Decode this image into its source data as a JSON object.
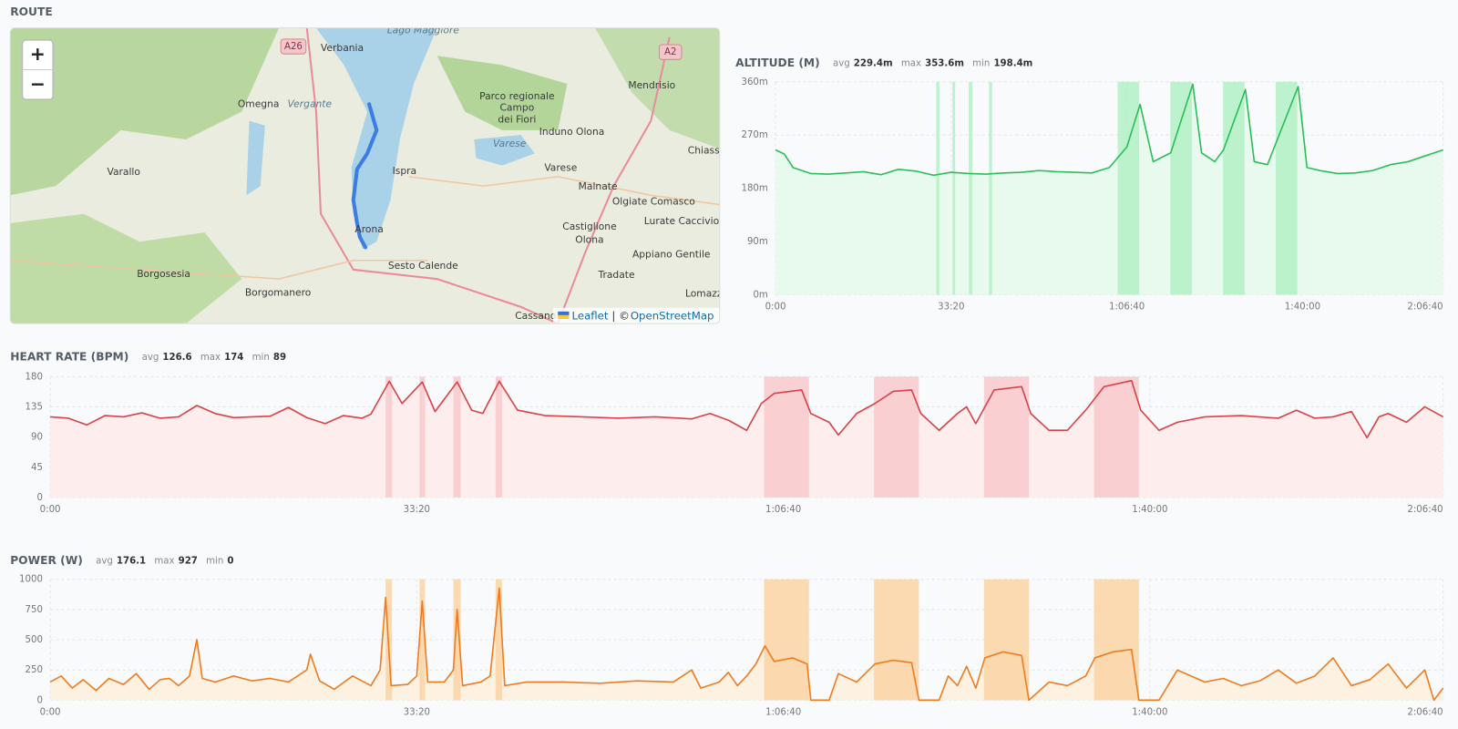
{
  "route": {
    "title": "ROUTE",
    "zoom_in": "+",
    "zoom_out": "−",
    "attribution": [
      "Leaflet",
      "| ©",
      "OpenStreetMap"
    ],
    "road_labels": [
      "A26",
      "A2"
    ],
    "places": [
      "Lago Maggiore",
      "Verbania",
      "Omegna",
      "Vergante",
      "Parco regionale",
      "Campo",
      "dei Fiori",
      "Induno Olona",
      "Mendrisio",
      "Chiasso",
      "Varallo",
      "Ispra",
      "Varese",
      "Varese",
      "Malnate",
      "Olgiate Comasco",
      "Lurate Caccivio",
      "Castiglione",
      "Olona",
      "Appiano Gentile",
      "Arona",
      "Sesto Calende",
      "Tradate",
      "Lomazzo",
      "Borgosesia",
      "Borgomanero",
      "Cassano"
    ]
  },
  "intervals": [
    [
      1830,
      1865
    ],
    [
      2015,
      2045
    ],
    [
      2200,
      2240
    ],
    [
      2430,
      2465
    ],
    [
      3895,
      4140
    ],
    [
      4495,
      4740
    ],
    [
      5095,
      5340
    ],
    [
      5695,
      5940
    ]
  ],
  "chart_data": [
    {
      "type": "line",
      "title": "ALTITUDE (M)",
      "stats": [
        {
          "label": "avg",
          "value": "229.4m"
        },
        {
          "label": "max",
          "value": "353.6m"
        },
        {
          "label": "min",
          "value": "198.4m"
        }
      ],
      "color": "#2bbf5a",
      "fill_color": "#e8faee",
      "highlight_color": "#b3f0c6",
      "grid": true,
      "xlim": [
        0,
        7600
      ],
      "xticks": [
        {
          "value": 0,
          "label": "0:00"
        },
        {
          "value": 2000,
          "label": "33:20"
        },
        {
          "value": 4000,
          "label": "1:06:40"
        },
        {
          "value": 6000,
          "label": "1:40:00"
        },
        {
          "value": 7600,
          "label": "2:06:40"
        }
      ],
      "ylim": [
        0,
        360
      ],
      "yticks": [
        {
          "value": 0,
          "label": "0m"
        },
        {
          "value": 90,
          "label": "90m"
        },
        {
          "value": 180,
          "label": "180m"
        },
        {
          "value": 270,
          "label": "270m"
        },
        {
          "value": 360,
          "label": "360m"
        }
      ],
      "x": [
        0,
        100,
        200,
        400,
        600,
        800,
        1000,
        1200,
        1400,
        1600,
        1800,
        2000,
        2200,
        2400,
        2600,
        2800,
        3000,
        3200,
        3400,
        3600,
        3800,
        4000,
        4150,
        4300,
        4500,
        4750,
        4850,
        5000,
        5100,
        5350,
        5450,
        5600,
        5950,
        6050,
        6200,
        6400,
        6600,
        6800,
        7000,
        7200,
        7400,
        7600
      ],
      "values": [
        245,
        238,
        215,
        205,
        204,
        206,
        208,
        203,
        212,
        209,
        202,
        207,
        205,
        204,
        206,
        207,
        210,
        208,
        207,
        206,
        215,
        250,
        322,
        225,
        240,
        356,
        240,
        225,
        245,
        347,
        225,
        220,
        352,
        215,
        210,
        205,
        206,
        210,
        220,
        225,
        235,
        245
      ]
    },
    {
      "type": "line",
      "title": "HEART RATE (BPM)",
      "stats": [
        {
          "label": "avg",
          "value": "126.6"
        },
        {
          "label": "max",
          "value": "174"
        },
        {
          "label": "min",
          "value": "89"
        }
      ],
      "color": "#d9434b",
      "fill_color": "#fdeded",
      "highlight_color": "#f9c9cc",
      "grid": true,
      "xlim": [
        0,
        7600
      ],
      "xticks": [
        {
          "value": 0,
          "label": "0:00"
        },
        {
          "value": 2000,
          "label": "33:20"
        },
        {
          "value": 4000,
          "label": "1:06:40"
        },
        {
          "value": 6000,
          "label": "1:40:00"
        },
        {
          "value": 7600,
          "label": "2:06:40"
        }
      ],
      "ylim": [
        0,
        180
      ],
      "yticks": [
        0,
        45,
        90,
        135,
        180
      ],
      "x": [
        0,
        100,
        200,
        300,
        400,
        500,
        600,
        700,
        800,
        900,
        1000,
        1100,
        1200,
        1300,
        1400,
        1500,
        1600,
        1700,
        1750,
        1850,
        1920,
        2030,
        2100,
        2220,
        2300,
        2360,
        2450,
        2550,
        2700,
        2900,
        3100,
        3300,
        3500,
        3600,
        3700,
        3800,
        3880,
        3950,
        4100,
        4150,
        4250,
        4300,
        4400,
        4500,
        4600,
        4700,
        4750,
        4850,
        4950,
        5000,
        5050,
        5150,
        5300,
        5350,
        5450,
        5550,
        5650,
        5750,
        5900,
        5950,
        6050,
        6150,
        6300,
        6500,
        6700,
        6800,
        6900,
        7000,
        7100,
        7185,
        7250,
        7300,
        7400,
        7500,
        7600
      ],
      "values": [
        120,
        118,
        108,
        122,
        120,
        126,
        118,
        120,
        137,
        125,
        119,
        120,
        121,
        134,
        119,
        110,
        122,
        118,
        124,
        173,
        140,
        172,
        128,
        172,
        130,
        125,
        173,
        130,
        122,
        120,
        118,
        120,
        117,
        125,
        115,
        100,
        140,
        155,
        160,
        125,
        112,
        93,
        125,
        140,
        158,
        160,
        125,
        100,
        125,
        135,
        110,
        160,
        165,
        125,
        100,
        100,
        130,
        165,
        174,
        130,
        100,
        112,
        120,
        122,
        118,
        130,
        118,
        120,
        128,
        89,
        120,
        125,
        112,
        135,
        120
      ]
    },
    {
      "type": "line",
      "title": "POWER (W)",
      "stats": [
        {
          "label": "avg",
          "value": "176.1"
        },
        {
          "label": "max",
          "value": "927"
        },
        {
          "label": "min",
          "value": "0"
        }
      ],
      "color": "#ee7d22",
      "fill_color": "#fdf1e2",
      "highlight_color": "#fbd3a5",
      "grid": true,
      "xlim": [
        0,
        7600
      ],
      "xticks": [
        {
          "value": 0,
          "label": "0:00"
        },
        {
          "value": 2000,
          "label": "33:20"
        },
        {
          "value": 4000,
          "label": "1:06:40"
        },
        {
          "value": 6000,
          "label": "1:40:00"
        },
        {
          "value": 7600,
          "label": "2:06:40"
        }
      ],
      "ylim": [
        0,
        1000
      ],
      "yticks": [
        0,
        250,
        500,
        750,
        1000
      ],
      "x": [
        0,
        60,
        120,
        180,
        250,
        320,
        400,
        470,
        540,
        600,
        650,
        700,
        760,
        800,
        830,
        900,
        1000,
        1100,
        1200,
        1300,
        1400,
        1420,
        1470,
        1550,
        1650,
        1750,
        1800,
        1830,
        1860,
        1950,
        2000,
        2030,
        2060,
        2150,
        2200,
        2220,
        2250,
        2350,
        2400,
        2450,
        2480,
        2600,
        2800,
        3000,
        3200,
        3400,
        3500,
        3550,
        3650,
        3700,
        3750,
        3800,
        3850,
        3900,
        3950,
        4050,
        4130,
        4150,
        4250,
        4300,
        4400,
        4500,
        4600,
        4700,
        4740,
        4850,
        4900,
        4950,
        5000,
        5050,
        5100,
        5200,
        5300,
        5340,
        5450,
        5550,
        5650,
        5700,
        5800,
        5900,
        5940,
        6050,
        6150,
        6300,
        6400,
        6500,
        6600,
        6700,
        6800,
        6900,
        7000,
        7100,
        7200,
        7300,
        7400,
        7500,
        7550,
        7600
      ],
      "values": [
        150,
        200,
        100,
        170,
        80,
        180,
        130,
        220,
        90,
        170,
        180,
        120,
        200,
        500,
        180,
        150,
        200,
        160,
        180,
        150,
        250,
        380,
        160,
        90,
        200,
        120,
        250,
        850,
        120,
        130,
        200,
        820,
        150,
        150,
        250,
        750,
        120,
        150,
        200,
        927,
        120,
        150,
        150,
        140,
        160,
        150,
        250,
        100,
        150,
        230,
        120,
        200,
        300,
        450,
        320,
        350,
        300,
        0,
        0,
        220,
        150,
        300,
        330,
        310,
        0,
        0,
        200,
        120,
        280,
        100,
        350,
        400,
        370,
        0,
        150,
        120,
        200,
        350,
        400,
        420,
        0,
        0,
        250,
        150,
        180,
        120,
        160,
        250,
        140,
        200,
        350,
        120,
        170,
        300,
        100,
        250,
        0,
        100
      ]
    }
  ]
}
